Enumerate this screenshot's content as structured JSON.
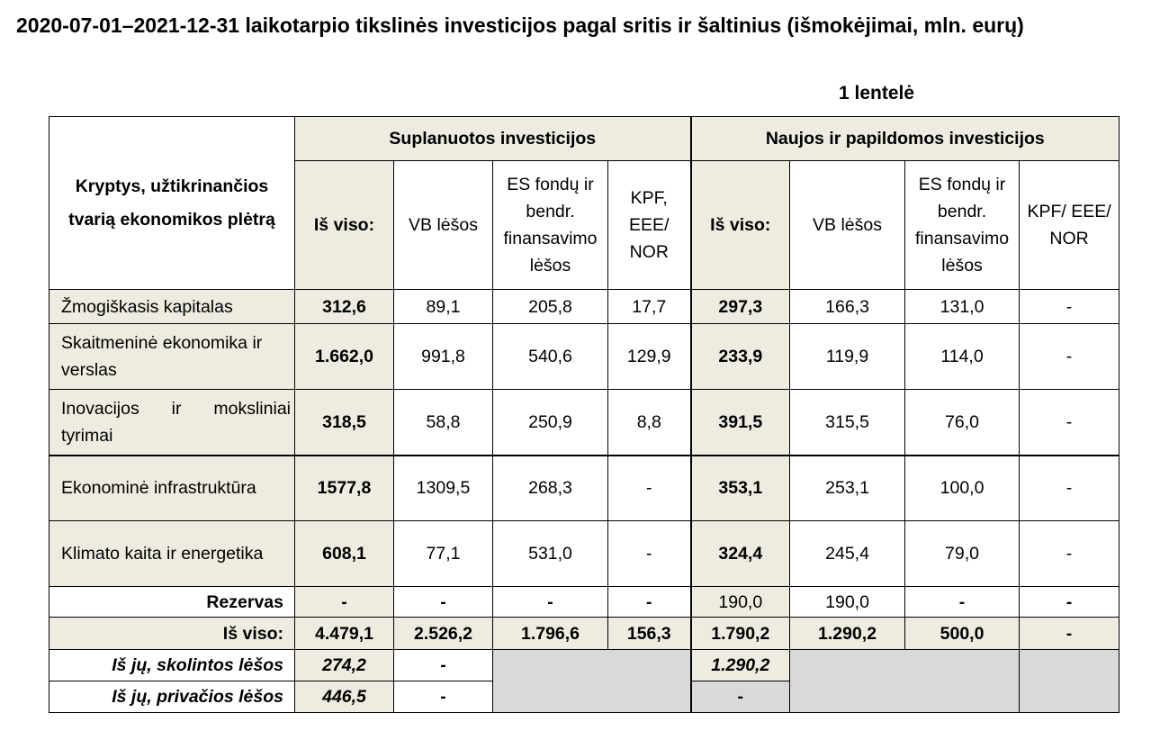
{
  "title": "2020-07-01–2021-12-31 laikotarpio tikslinės investicijos pagal sritis ir šaltinius (išmokėjimai, mln. eurų)",
  "table_number": "1 lentelė",
  "table": {
    "row_header": "Kryptys, užtikrinančios tvarią ekonomikos plėtrą",
    "group1": "Suplanuotos investicijos",
    "group2": "Naujos ir papildomos investicijos",
    "g1_cols": [
      "Iš viso:",
      "VB lėšos",
      "ES fondų ir bendr. finansavimo lėšos",
      "KPF, EEE/ NOR"
    ],
    "g2_cols": [
      "Iš viso:",
      "VB lėšos",
      "ES fondų ir bendr. finansavimo lėšos",
      "KPF/ EEE/ NOR"
    ],
    "rows": [
      {
        "label": "Žmogiškasis kapitalas",
        "values": [
          "312,6",
          "89,1",
          "205,8",
          "17,7",
          "297,3",
          "166,3",
          "131,0",
          "-"
        ]
      },
      {
        "label": "Skaitmeninė ekonomika ir verslas",
        "values": [
          "1.662,0",
          "991,8",
          "540,6",
          "129,9",
          "233,9",
          "119,9",
          "114,0",
          "-"
        ]
      },
      {
        "label": "Inovacijos ir moksliniai tyrimai",
        "values": [
          "318,5",
          "58,8",
          "250,9",
          "8,8",
          "391,5",
          "315,5",
          "76,0",
          "-"
        ]
      },
      {
        "label": "Ekonominė infrastruktūra",
        "values": [
          "1577,8",
          "1309,5",
          "268,3",
          "-",
          "353,1",
          "253,1",
          "100,0",
          "-"
        ]
      },
      {
        "label": "Klimato kaita ir energetika",
        "values": [
          "608,1",
          "77,1",
          "531,0",
          "-",
          "324,4",
          "245,4",
          "79,0",
          "-"
        ]
      }
    ],
    "reserve": {
      "label": "Rezervas",
      "values": [
        "-",
        "-",
        "-",
        "-",
        "190,0",
        "190,0",
        "-",
        "-"
      ]
    },
    "total": {
      "label": "Iš viso:",
      "values": [
        "4.479,1",
        "2.526,2",
        "1.796,6",
        "156,3",
        "1.790,2",
        "1.290,2",
        "500,0",
        "-"
      ]
    },
    "borrowed": {
      "label": "Iš jų, skolintos lėšos",
      "v1": "274,2",
      "v2": "-",
      "v5": "1.290,2"
    },
    "private": {
      "label": "Iš jų, privačios lėšos",
      "v1": "446,5",
      "v2": "-",
      "v5": "-"
    }
  }
}
